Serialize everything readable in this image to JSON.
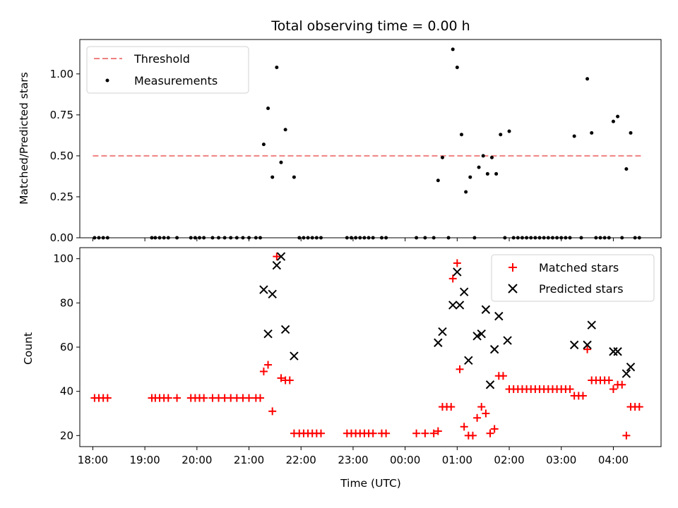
{
  "chart_data": [
    {
      "type": "scatter",
      "title": "Total observing time = 0.00 h",
      "ylabel": "Matched/Predicted stars",
      "xlabel": "",
      "ylim": [
        0,
        1.21
      ],
      "yticks": [
        0.0,
        0.25,
        0.5,
        0.75,
        1.0
      ],
      "ytick_labels": [
        "0.00",
        "0.25",
        "0.50",
        "0.75",
        "1.00"
      ],
      "legend_position": "top-left",
      "colors": {
        "threshold": "#f08080",
        "measurements": "#000000"
      },
      "threshold": {
        "name": "Threshold",
        "y": 0.5,
        "x_start": "18:00",
        "x_end": "04:35"
      },
      "series": [
        {
          "name": "Measurements",
          "points": [
            [
              "18:02",
              0
            ],
            [
              "18:07",
              0
            ],
            [
              "18:12",
              0
            ],
            [
              "18:17",
              0
            ],
            [
              "19:08",
              0
            ],
            [
              "19:12",
              0
            ],
            [
              "19:17",
              0
            ],
            [
              "19:22",
              0
            ],
            [
              "19:27",
              0
            ],
            [
              "19:37",
              0
            ],
            [
              "19:53",
              0
            ],
            [
              "19:58",
              0
            ],
            [
              "20:03",
              0
            ],
            [
              "20:08",
              0
            ],
            [
              "20:18",
              0
            ],
            [
              "20:25",
              0
            ],
            [
              "20:32",
              0
            ],
            [
              "20:39",
              0
            ],
            [
              "20:46",
              0
            ],
            [
              "20:53",
              0
            ],
            [
              "21:00",
              0
            ],
            [
              "21:08",
              0
            ],
            [
              "21:13",
              0
            ],
            [
              "21:17",
              0.57
            ],
            [
              "21:22",
              0.79
            ],
            [
              "21:27",
              0.37
            ],
            [
              "21:32",
              1.04
            ],
            [
              "21:37",
              0.46
            ],
            [
              "21:42",
              0.66
            ],
            [
              "21:52",
              0.37
            ],
            [
              "21:58",
              0
            ],
            [
              "22:03",
              0
            ],
            [
              "22:08",
              0
            ],
            [
              "22:13",
              0
            ],
            [
              "22:18",
              0
            ],
            [
              "22:23",
              0
            ],
            [
              "22:53",
              0
            ],
            [
              "22:58",
              0
            ],
            [
              "23:03",
              0
            ],
            [
              "23:08",
              0
            ],
            [
              "23:13",
              0
            ],
            [
              "23:18",
              0
            ],
            [
              "23:23",
              0
            ],
            [
              "23:33",
              0
            ],
            [
              "23:38",
              0
            ],
            [
              "00:13",
              0
            ],
            [
              "00:23",
              0
            ],
            [
              "00:33",
              0
            ],
            [
              "00:38",
              0.35
            ],
            [
              "00:43",
              0.49
            ],
            [
              "00:50",
              0
            ],
            [
              "00:55",
              1.15
            ],
            [
              "01:00",
              1.04
            ],
            [
              "01:05",
              0.63
            ],
            [
              "01:10",
              0.28
            ],
            [
              "01:15",
              0.37
            ],
            [
              "01:20",
              0
            ],
            [
              "01:25",
              0.43
            ],
            [
              "01:30",
              0.5
            ],
            [
              "01:35",
              0.39
            ],
            [
              "01:40",
              0.49
            ],
            [
              "01:45",
              0.39
            ],
            [
              "01:50",
              0.63
            ],
            [
              "01:55",
              0
            ],
            [
              "02:00",
              0.65
            ],
            [
              "02:05",
              0
            ],
            [
              "02:10",
              0
            ],
            [
              "02:15",
              0
            ],
            [
              "02:20",
              0
            ],
            [
              "02:25",
              0
            ],
            [
              "02:30",
              0
            ],
            [
              "02:35",
              0
            ],
            [
              "02:40",
              0
            ],
            [
              "02:45",
              0
            ],
            [
              "02:50",
              0
            ],
            [
              "02:55",
              0
            ],
            [
              "03:00",
              0
            ],
            [
              "03:05",
              0
            ],
            [
              "03:10",
              0
            ],
            [
              "03:15",
              0.62
            ],
            [
              "03:23",
              0
            ],
            [
              "03:30",
              0.97
            ],
            [
              "03:35",
              0.64
            ],
            [
              "03:40",
              0
            ],
            [
              "03:45",
              0
            ],
            [
              "03:50",
              0
            ],
            [
              "03:55",
              0
            ],
            [
              "04:00",
              0.71
            ],
            [
              "04:05",
              0.74
            ],
            [
              "04:10",
              0
            ],
            [
              "04:15",
              0.42
            ],
            [
              "04:20",
              0.64
            ],
            [
              "04:25",
              0
            ],
            [
              "04:30",
              0
            ]
          ]
        }
      ]
    },
    {
      "type": "scatter",
      "title": "",
      "ylabel": "Count",
      "xlabel": "Time (UTC)",
      "ylim": [
        15,
        105
      ],
      "yticks": [
        20,
        40,
        60,
        80,
        100
      ],
      "ytick_labels": [
        "20",
        "40",
        "60",
        "80",
        "100"
      ],
      "xlim": [
        "17:45",
        "04:55"
      ],
      "xticks": [
        "18:00",
        "19:00",
        "20:00",
        "21:00",
        "22:00",
        "23:00",
        "00:00",
        "01:00",
        "02:00",
        "03:00",
        "04:00"
      ],
      "xtick_labels": [
        "18:00",
        "19:00",
        "20:00",
        "21:00",
        "22:00",
        "23:00",
        "00:00",
        "01:00",
        "02:00",
        "03:00",
        "04:00"
      ],
      "legend_position": "top-right",
      "colors": {
        "matched": "#ff0000",
        "predicted": "#000000"
      },
      "series": [
        {
          "name": "Matched stars",
          "marker": "plus",
          "points": [
            [
              "18:02",
              37
            ],
            [
              "18:07",
              37
            ],
            [
              "18:12",
              37
            ],
            [
              "18:17",
              37
            ],
            [
              "19:08",
              37
            ],
            [
              "19:12",
              37
            ],
            [
              "19:17",
              37
            ],
            [
              "19:22",
              37
            ],
            [
              "19:27",
              37
            ],
            [
              "19:37",
              37
            ],
            [
              "19:53",
              37
            ],
            [
              "19:58",
              37
            ],
            [
              "20:03",
              37
            ],
            [
              "20:08",
              37
            ],
            [
              "20:18",
              37
            ],
            [
              "20:25",
              37
            ],
            [
              "20:32",
              37
            ],
            [
              "20:39",
              37
            ],
            [
              "20:46",
              37
            ],
            [
              "20:53",
              37
            ],
            [
              "21:00",
              37
            ],
            [
              "21:08",
              37
            ],
            [
              "21:13",
              37
            ],
            [
              "21:17",
              49
            ],
            [
              "21:22",
              52
            ],
            [
              "21:27",
              31
            ],
            [
              "21:32",
              101
            ],
            [
              "21:37",
              46
            ],
            [
              "21:42",
              45
            ],
            [
              "21:47",
              45
            ],
            [
              "21:52",
              21
            ],
            [
              "21:58",
              21
            ],
            [
              "22:03",
              21
            ],
            [
              "22:08",
              21
            ],
            [
              "22:13",
              21
            ],
            [
              "22:18",
              21
            ],
            [
              "22:23",
              21
            ],
            [
              "22:53",
              21
            ],
            [
              "22:58",
              21
            ],
            [
              "23:03",
              21
            ],
            [
              "23:08",
              21
            ],
            [
              "23:13",
              21
            ],
            [
              "23:18",
              21
            ],
            [
              "23:23",
              21
            ],
            [
              "23:33",
              21
            ],
            [
              "23:38",
              21
            ],
            [
              "00:13",
              21
            ],
            [
              "00:23",
              21
            ],
            [
              "00:33",
              21
            ],
            [
              "00:38",
              22
            ],
            [
              "00:43",
              33
            ],
            [
              "00:48",
              33
            ],
            [
              "00:53",
              33
            ],
            [
              "00:55",
              91
            ],
            [
              "01:00",
              98
            ],
            [
              "01:03",
              50
            ],
            [
              "01:08",
              24
            ],
            [
              "01:13",
              20
            ],
            [
              "01:18",
              20
            ],
            [
              "01:23",
              28
            ],
            [
              "01:28",
              33
            ],
            [
              "01:33",
              30
            ],
            [
              "01:38",
              21
            ],
            [
              "01:43",
              23
            ],
            [
              "01:48",
              47
            ],
            [
              "01:53",
              47
            ],
            [
              "02:00",
              41
            ],
            [
              "02:05",
              41
            ],
            [
              "02:10",
              41
            ],
            [
              "02:15",
              41
            ],
            [
              "02:20",
              41
            ],
            [
              "02:25",
              41
            ],
            [
              "02:30",
              41
            ],
            [
              "02:35",
              41
            ],
            [
              "02:40",
              41
            ],
            [
              "02:45",
              41
            ],
            [
              "02:50",
              41
            ],
            [
              "02:55",
              41
            ],
            [
              "03:00",
              41
            ],
            [
              "03:05",
              41
            ],
            [
              "03:10",
              41
            ],
            [
              "03:15",
              38
            ],
            [
              "03:20",
              38
            ],
            [
              "03:25",
              38
            ],
            [
              "03:30",
              59
            ],
            [
              "03:35",
              45
            ],
            [
              "03:40",
              45
            ],
            [
              "03:45",
              45
            ],
            [
              "03:50",
              45
            ],
            [
              "03:55",
              45
            ],
            [
              "04:00",
              41
            ],
            [
              "04:05",
              43
            ],
            [
              "04:10",
              43
            ],
            [
              "04:15",
              20
            ],
            [
              "04:20",
              33
            ],
            [
              "04:25",
              33
            ],
            [
              "04:30",
              33
            ]
          ]
        },
        {
          "name": "Predicted stars",
          "marker": "x",
          "points": [
            [
              "21:17",
              86
            ],
            [
              "21:22",
              66
            ],
            [
              "21:27",
              84
            ],
            [
              "21:32",
              97
            ],
            [
              "21:37",
              101
            ],
            [
              "21:42",
              68
            ],
            [
              "21:52",
              56
            ],
            [
              "00:38",
              62
            ],
            [
              "00:43",
              67
            ],
            [
              "00:55",
              79
            ],
            [
              "01:00",
              94
            ],
            [
              "01:03",
              79
            ],
            [
              "01:08",
              85
            ],
            [
              "01:13",
              54
            ],
            [
              "01:23",
              65
            ],
            [
              "01:28",
              66
            ],
            [
              "01:33",
              77
            ],
            [
              "01:38",
              43
            ],
            [
              "01:43",
              59
            ],
            [
              "01:48",
              74
            ],
            [
              "01:58",
              63
            ],
            [
              "03:15",
              61
            ],
            [
              "03:30",
              61
            ],
            [
              "03:35",
              70
            ],
            [
              "04:00",
              58
            ],
            [
              "04:05",
              58
            ],
            [
              "04:15",
              48
            ],
            [
              "04:20",
              51
            ]
          ]
        }
      ]
    }
  ]
}
